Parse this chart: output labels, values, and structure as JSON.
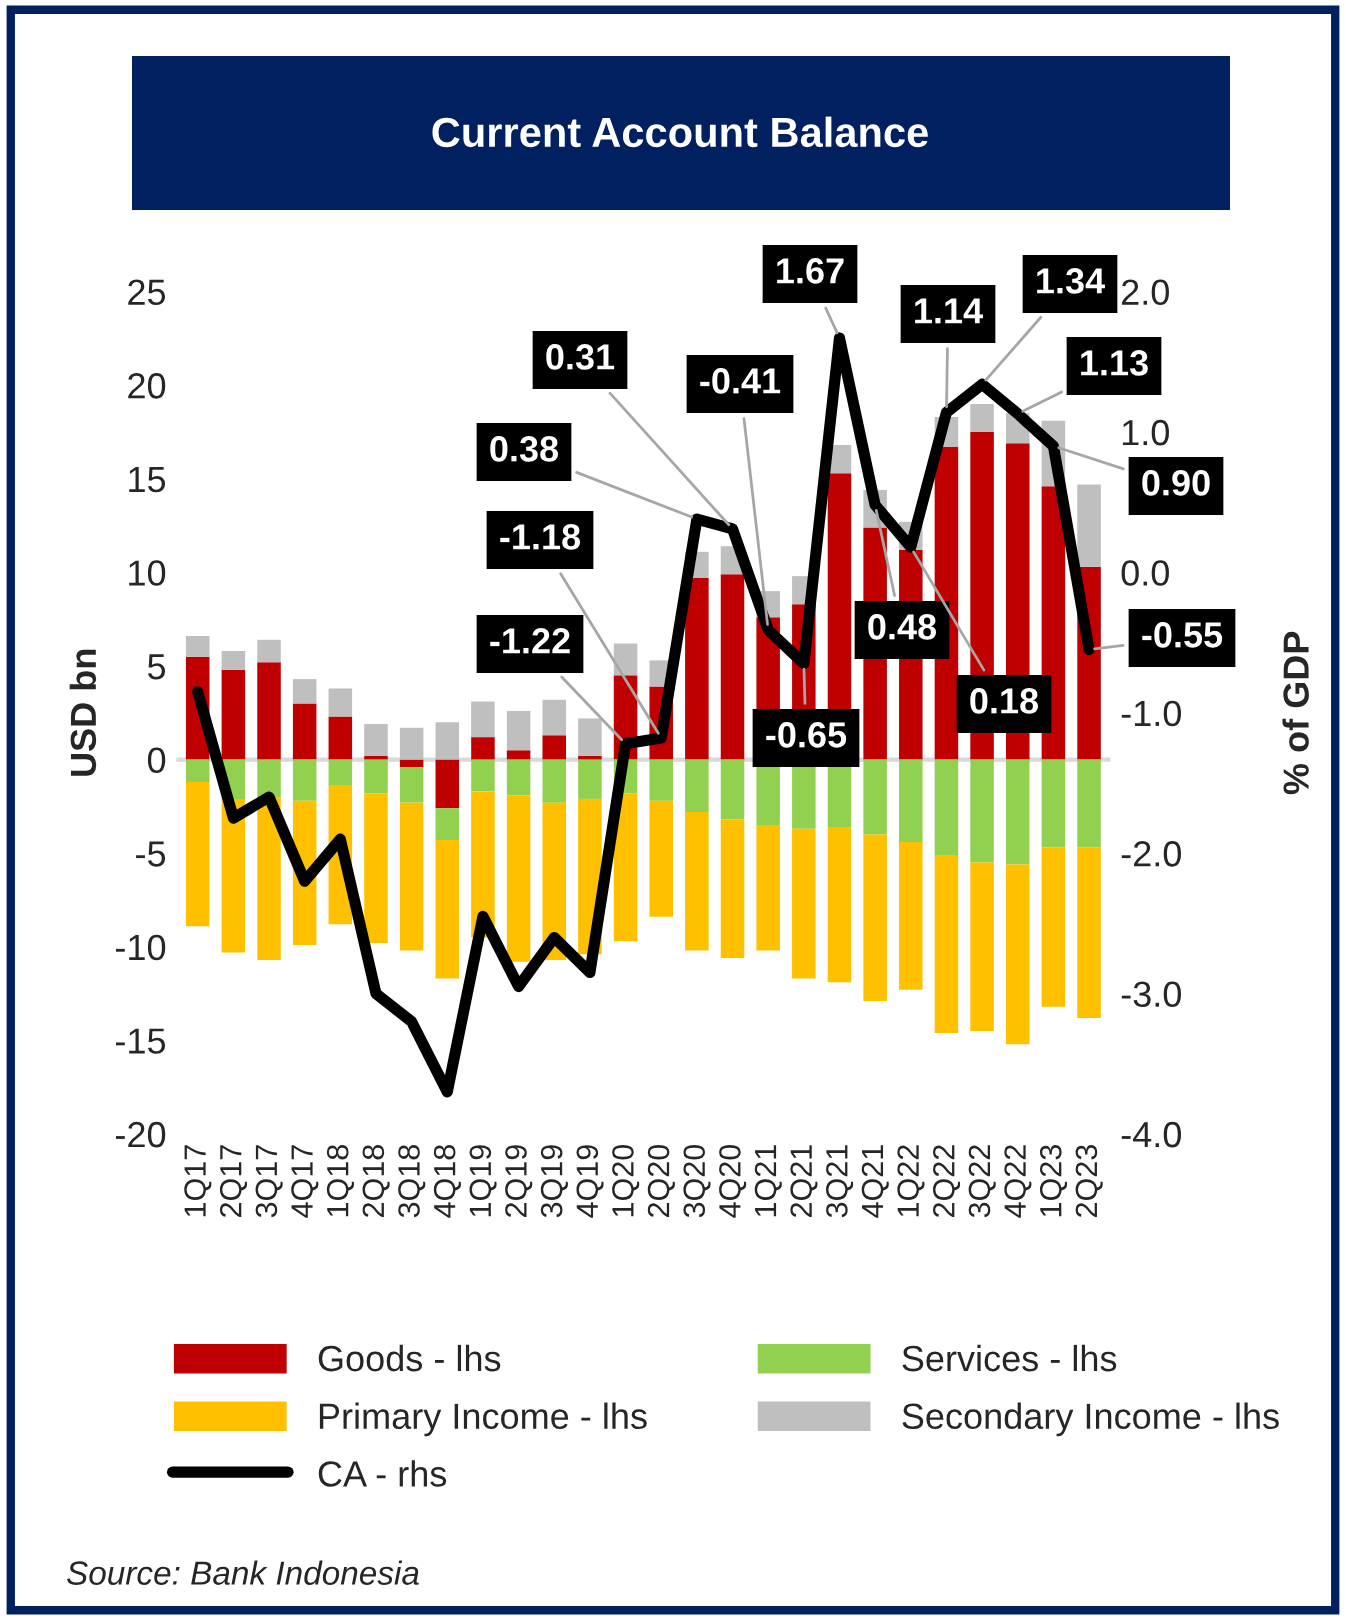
{
  "chart_data": {
    "type": "bar",
    "stacked": true,
    "title": "Current Account Balance",
    "ylabel": "USD bn",
    "y2label": "% of GDP",
    "categories": [
      "1Q17",
      "2Q17",
      "3Q17",
      "4Q17",
      "1Q18",
      "2Q18",
      "3Q18",
      "4Q18",
      "1Q19",
      "2Q19",
      "3Q19",
      "4Q19",
      "1Q20",
      "2Q20",
      "3Q20",
      "4Q20",
      "1Q21",
      "2Q21",
      "3Q21",
      "4Q21",
      "1Q22",
      "2Q22",
      "3Q22",
      "4Q22",
      "1Q23",
      "2Q23"
    ],
    "series": [
      {
        "name": "Goods - lhs",
        "color": "#c00000",
        "values": [
          5.5,
          4.8,
          5.2,
          3.0,
          2.3,
          0.2,
          -0.4,
          -2.6,
          1.2,
          0.5,
          1.3,
          0.2,
          4.5,
          3.9,
          9.7,
          9.9,
          7.6,
          8.3,
          15.3,
          12.4,
          11.2,
          16.7,
          17.5,
          16.9,
          14.6,
          10.3
        ]
      },
      {
        "name": "Services - lhs",
        "color": "#92d050",
        "values": [
          -1.2,
          -2.1,
          -2.0,
          -2.2,
          -1.4,
          -1.8,
          -1.9,
          -1.7,
          -1.7,
          -1.9,
          -2.3,
          -2.1,
          -1.8,
          -2.2,
          -2.8,
          -3.2,
          -3.5,
          -3.7,
          -3.6,
          -4.0,
          -4.4,
          -5.1,
          -5.5,
          -5.6,
          -4.7,
          -4.7
        ]
      },
      {
        "name": "Primary Income - lhs",
        "color": "#ffc000",
        "values": [
          -7.7,
          -8.2,
          -8.7,
          -7.7,
          -7.4,
          -8.0,
          -7.9,
          -7.4,
          -7.8,
          -8.9,
          -8.4,
          -8.3,
          -7.9,
          -6.2,
          -7.4,
          -7.4,
          -6.7,
          -8.0,
          -8.3,
          -8.9,
          -7.9,
          -9.5,
          -9.0,
          -9.6,
          -8.5,
          -9.1
        ]
      },
      {
        "name": "Secondary Income - lhs",
        "color": "#bfbfbf",
        "values": [
          1.1,
          1.0,
          1.2,
          1.3,
          1.5,
          1.7,
          1.7,
          2.0,
          1.9,
          2.1,
          1.9,
          2.0,
          1.7,
          1.4,
          1.4,
          1.5,
          1.4,
          1.5,
          1.5,
          2.0,
          1.5,
          1.6,
          1.5,
          1.6,
          3.5,
          4.4
        ]
      },
      {
        "name": "CA - rhs",
        "type": "line",
        "axis": "y2",
        "color": "#000000",
        "values": [
          -0.85,
          -1.75,
          -1.6,
          -2.2,
          -1.9,
          -3.0,
          -3.2,
          -3.7,
          -2.45,
          -2.95,
          -2.6,
          -2.85,
          -1.22,
          -1.18,
          0.38,
          0.31,
          -0.41,
          -0.65,
          1.67,
          0.48,
          0.18,
          1.14,
          1.34,
          1.13,
          0.9,
          -0.55
        ],
        "value_labels": [
          null,
          null,
          null,
          null,
          null,
          null,
          null,
          null,
          null,
          null,
          null,
          null,
          "-1.22",
          "-1.18",
          "0.38",
          "0.31",
          "-0.41",
          "-0.65",
          "1.67",
          "0.48",
          "0.18",
          "1.14",
          "1.34",
          "1.13",
          "0.90",
          "-0.55"
        ]
      }
    ],
    "ylim": [
      -20,
      25
    ],
    "yticks": [
      -20,
      -15,
      -10,
      -5,
      0,
      5,
      10,
      15,
      20,
      25
    ],
    "y2lim": [
      -4,
      2
    ],
    "y2ticks": [
      {
        "value": -4,
        "label": "-4.0"
      },
      {
        "value": -3,
        "label": "-3.0"
      },
      {
        "value": -2,
        "label": "-2.0"
      },
      {
        "value": -1,
        "label": "-1.0"
      },
      {
        "value": 0,
        "label": "0.0"
      },
      {
        "value": 1,
        "label": "1.0"
      },
      {
        "value": 2,
        "label": "2.0"
      }
    ],
    "ref_lines": [
      {
        "axis": "y",
        "value": 0,
        "color": "#d9d9d9"
      }
    ],
    "legend": "bottom",
    "line_style": "solid",
    "annotations": [
      "Source: Bank Indonesia"
    ]
  }
}
